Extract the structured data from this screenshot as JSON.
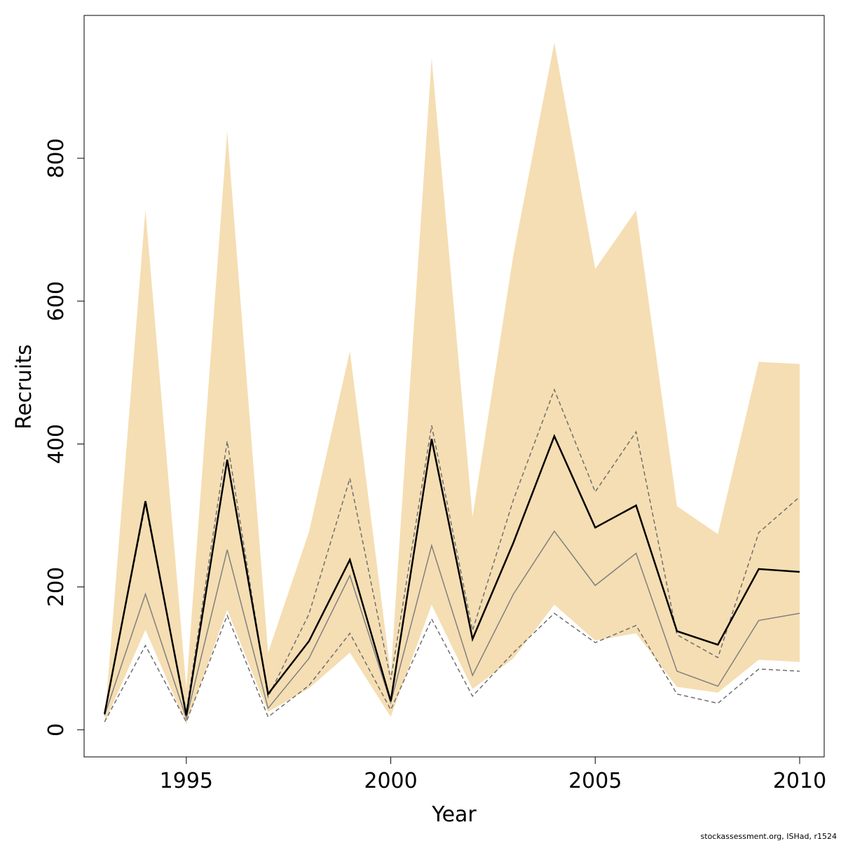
{
  "chart_data": {
    "type": "area",
    "xlabel": "Year",
    "ylabel": "Recruits",
    "xlim": [
      1992.5,
      2010.6
    ],
    "ylim": [
      -38,
      1000
    ],
    "x_ticks": [
      1995,
      2000,
      2005,
      2010
    ],
    "y_ticks": [
      0,
      200,
      400,
      600,
      800
    ],
    "grid": false,
    "legend": "none",
    "x": [
      1993,
      1994,
      1995,
      1996,
      1997,
      1998,
      1999,
      2000,
      2001,
      2002,
      2003,
      2004,
      2005,
      2006,
      2007,
      2008,
      2009,
      2010
    ],
    "band": {
      "color": "#f5deb3",
      "upper": [
        10,
        728,
        58,
        838,
        108,
        277,
        530,
        78,
        940,
        298,
        665,
        962,
        645,
        727,
        313,
        274,
        515,
        512
      ],
      "lower": [
        10,
        140,
        8,
        168,
        25,
        58,
        108,
        18,
        175,
        57,
        100,
        175,
        125,
        135,
        60,
        52,
        98,
        95
      ]
    },
    "series": [
      {
        "style": "solid",
        "color": "#000000",
        "values": [
          22,
          320,
          20,
          378,
          50,
          124,
          238,
          40,
          407,
          127,
          262,
          411,
          283,
          314,
          138,
          119,
          225,
          221
        ]
      },
      {
        "style": "solid",
        "color": "#808080",
        "values": [
          20,
          190,
          16,
          252,
          30,
          100,
          216,
          38,
          258,
          76,
          190,
          278,
          202,
          247,
          82,
          61,
          153,
          163
        ]
      },
      {
        "style": "dashed",
        "color": "#6e6e6e",
        "values": [
          11,
          118,
          11,
          160,
          18,
          62,
          135,
          28,
          155,
          47,
          108,
          163,
          122,
          146,
          50,
          37,
          85,
          82
        ]
      },
      {
        "style": "dashed",
        "color": "#6e6e6e",
        "values": [
          22,
          315,
          25,
          404,
          46,
          162,
          352,
          70,
          426,
          139,
          322,
          476,
          333,
          417,
          133,
          101,
          276,
          326
        ]
      }
    ],
    "footnote": "stockassessment.org, ISHad, r1524"
  }
}
